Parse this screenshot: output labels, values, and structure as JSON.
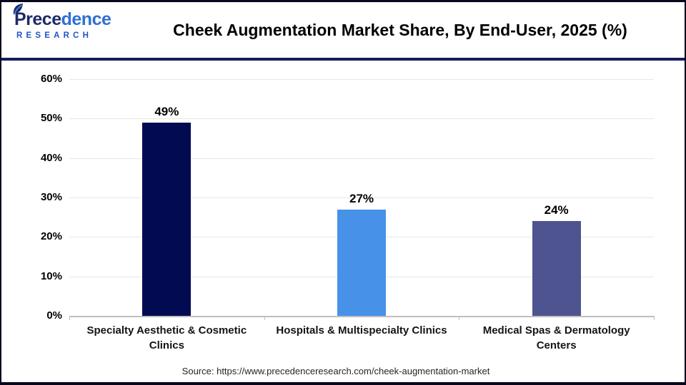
{
  "header": {
    "title": "Cheek Augmentation Market Share, By End-User, 2025 (%)"
  },
  "logo": {
    "part1": "Prece",
    "part2": "dence",
    "subtitle": "RESEARCH",
    "color_dark": "#1d2a6b",
    "color_blue": "#2f6fd6",
    "research_color": "#2254c5"
  },
  "chart_data": {
    "type": "bar",
    "title": "Cheek Augmentation Market Share, By End-User, 2025 (%)",
    "categories": [
      "Specialty Aesthetic & Cosmetic Clinics",
      "Hospitals & Multispecialty Clinics",
      "Medical Spas & Dermatology Centers"
    ],
    "values": [
      49,
      27,
      24
    ],
    "value_labels": [
      "49%",
      "27%",
      "24%"
    ],
    "bar_colors": [
      "#020b52",
      "#4791e9",
      "#4e548f"
    ],
    "xlabel": "",
    "ylabel": "",
    "ylim": [
      0,
      60
    ],
    "ytick_step": 10,
    "ytick_labels": [
      "0%",
      "10%",
      "20%",
      "30%",
      "40%",
      "50%",
      "60%"
    ],
    "grid": true,
    "legend": false,
    "gridline_color": "#e7e7e7",
    "axis_color": "#bfbfbf"
  },
  "footer": {
    "source": "Source: https://www.precedenceresearch.com/cheek-augmentation-market"
  }
}
